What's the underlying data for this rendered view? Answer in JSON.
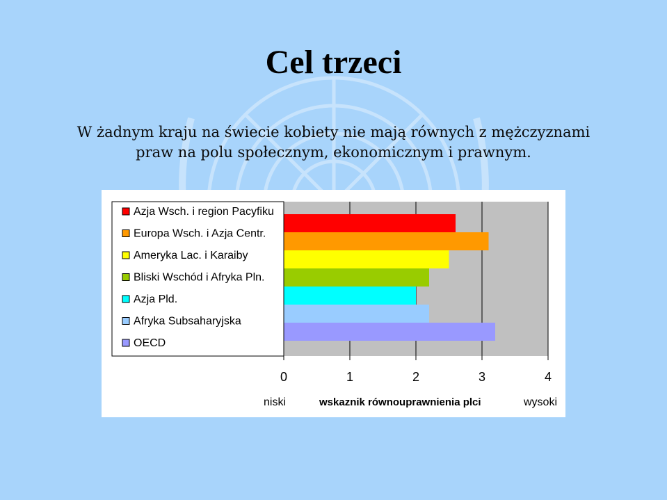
{
  "slide": {
    "title": "Cel trzeci",
    "subtitle_line1": "W żadnym kraju na świecie kobiety nie mają równych z mężczyznami",
    "subtitle_line2": "praw na polu społecznym, ekonomicznym i prawnym."
  },
  "colors": {
    "background": "#a8d4fb",
    "plot_area": "#c0c0c0"
  },
  "chart_data": {
    "type": "bar",
    "orientation": "horizontal",
    "categories": [
      "Azja Wsch. i region Pacyfiku",
      "Europa Wsch. i Azja Centr.",
      "Ameryka Lac. i Karaiby",
      "Bliski Wschód i Afryka Pln.",
      "Azja Pld.",
      "Afryka Subsaharyjska",
      "OECD"
    ],
    "values": [
      2.6,
      3.1,
      2.5,
      2.2,
      2.0,
      2.2,
      3.2
    ],
    "colors": [
      "#ff0000",
      "#ff9900",
      "#ffff00",
      "#99cc00",
      "#00ffff",
      "#99ccff",
      "#9999ff"
    ],
    "xlim": [
      0,
      4
    ],
    "xticks": [
      "0",
      "1",
      "2",
      "3",
      "4"
    ],
    "xlabel": "wskaznik równouprawnienia plci",
    "xlabel_left": "niski",
    "xlabel_right": "wysoki",
    "grid": true,
    "legend": "left"
  }
}
